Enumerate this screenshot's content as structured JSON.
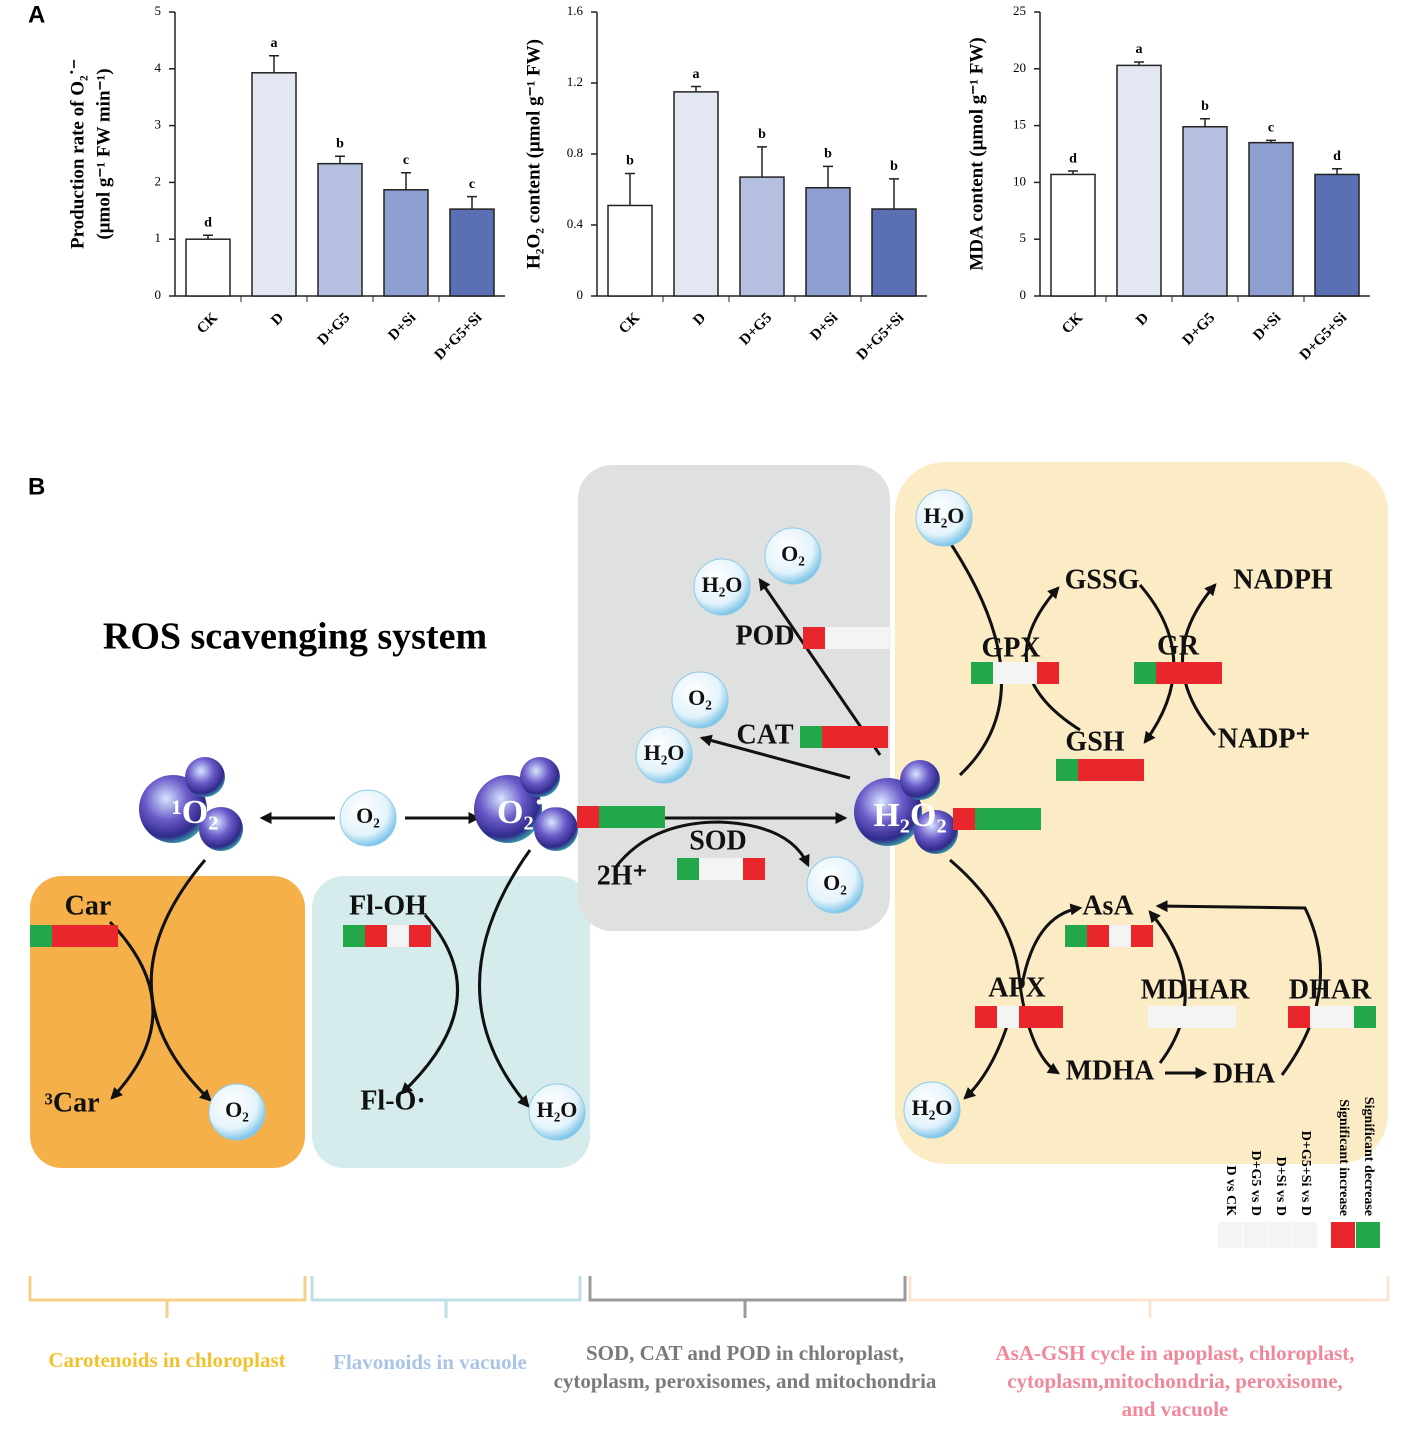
{
  "panel_labels": [
    "A",
    "B"
  ],
  "chart_data": [
    {
      "type": "bar",
      "ylabel": [
        "Production rate of O₂˙⁻",
        "(μmol g⁻¹ FW min⁻¹)"
      ],
      "categories": [
        "CK",
        "D",
        "D+G5",
        "D+Si",
        "D+G5+Si"
      ],
      "values": [
        1.0,
        3.93,
        2.33,
        1.87,
        1.53
      ],
      "errors": [
        0.07,
        0.3,
        0.13,
        0.3,
        0.22
      ],
      "annotations": [
        "d",
        "a",
        "b",
        "c",
        "c"
      ],
      "colors": [
        "#ffffff",
        "#e3e7f3",
        "#b5c0e0",
        "#8d9ed0",
        "#5a6fb4"
      ],
      "ylim": [
        0,
        5
      ],
      "yticks": [
        0,
        1,
        2,
        3,
        4,
        5
      ]
    },
    {
      "type": "bar",
      "ylabel": [
        "H₂O₂ content (μmol g⁻¹ FW)"
      ],
      "categories": [
        "CK",
        "D",
        "D+G5",
        "D+Si",
        "D+G5+Si"
      ],
      "values": [
        0.51,
        1.15,
        0.67,
        0.61,
        0.49
      ],
      "errors": [
        0.18,
        0.03,
        0.17,
        0.12,
        0.17
      ],
      "annotations": [
        "b",
        "a",
        "b",
        "b",
        "b"
      ],
      "colors": [
        "#ffffff",
        "#e3e7f3",
        "#b5c0e0",
        "#8d9ed0",
        "#5a6fb4"
      ],
      "ylim": [
        0,
        1.6
      ],
      "yticks": [
        0,
        0.4,
        0.8,
        1.2,
        1.6
      ]
    },
    {
      "type": "bar",
      "ylabel": [
        "MDA content (μmol g⁻¹ FW)"
      ],
      "categories": [
        "CK",
        "D",
        "D+G5",
        "D+Si",
        "D+G5+Si"
      ],
      "values": [
        10.7,
        20.3,
        14.9,
        13.5,
        10.7
      ],
      "errors": [
        0.3,
        0.3,
        0.7,
        0.2,
        0.5
      ],
      "annotations": [
        "d",
        "a",
        "b",
        "c",
        "d"
      ],
      "colors": [
        "#ffffff",
        "#e3e7f3",
        "#b5c0e0",
        "#8d9ed0",
        "#5a6fb4"
      ],
      "ylim": [
        0,
        25
      ],
      "yticks": [
        0,
        5,
        10,
        15,
        20,
        25
      ]
    }
  ],
  "diagram": {
    "title": "ROS scavenging system",
    "strip_colors": {
      "R": "#e8262b",
      "G": "#22a84a",
      "W": "#f4f4f4"
    },
    "nodes": [
      {
        "label": "H₂O"
      },
      {
        "label": "O₂"
      },
      {
        "label": "POD",
        "strip": "RWWW"
      },
      {
        "label": "O₂"
      },
      {
        "label": "H₂O"
      },
      {
        "label": "CAT",
        "strip": "GRRR"
      },
      {
        "label": "¹O₂"
      },
      {
        "label": "O₂"
      },
      {
        "label": "O₂˙⁻",
        "strip": "RGGG"
      },
      {
        "label": "SOD",
        "strip": "GWWR"
      },
      {
        "label": "2H⁺"
      },
      {
        "label": "O₂"
      },
      {
        "label": "H₂O₂",
        "strip": "RGGG"
      },
      {
        "label": "H₂O"
      },
      {
        "label": "GSSG"
      },
      {
        "label": "NADPH"
      },
      {
        "label": "GPX",
        "strip": "GWWR"
      },
      {
        "label": "GR",
        "strip": "GRRR"
      },
      {
        "label": "GSH",
        "strip": "GRRR"
      },
      {
        "label": "NADP⁺"
      },
      {
        "label": "Car",
        "strip": "GRRR"
      },
      {
        "label": "Fl-OH",
        "strip": "GRWR"
      },
      {
        "label": "³Car"
      },
      {
        "label": "O₂"
      },
      {
        "label": "Fl-O·"
      },
      {
        "label": "H₂O"
      },
      {
        "label": "AsA",
        "strip": "GRWR"
      },
      {
        "label": "APX",
        "strip": "RWRR"
      },
      {
        "label": "MDHAR",
        "strip": "WWWW"
      },
      {
        "label": "DHAR",
        "strip": "RWWG"
      },
      {
        "label": "MDHA"
      },
      {
        "label": "DHA"
      },
      {
        "label": "H₂O"
      }
    ],
    "legend": {
      "items": [
        {
          "label": "Significant decrease",
          "color": "G"
        },
        {
          "label": "Significant increase",
          "color": "R"
        }
      ],
      "comparisons": [
        "D vs CK",
        "D+G5 vs D",
        "D+Si vs D",
        "D+G5+Si vs D"
      ],
      "cell": "W"
    },
    "regions": [
      {
        "label": [
          "Carotenoids in chloroplast"
        ],
        "color": "#f2c12e"
      },
      {
        "label": [
          "Flavonoids in vacuole"
        ],
        "color": "#a9c4e6"
      },
      {
        "label": [
          "SOD, CAT and POD in chloroplast,",
          "cytoplasm, peroxisomes, and mitochondria"
        ],
        "color": "#7a7a7a"
      },
      {
        "label": [
          "AsA-GSH cycle in apoplast, chloroplast,",
          "cytoplasm,mitochondria, peroxisome,",
          "and vacuole"
        ],
        "color": "#f0889a"
      }
    ]
  }
}
